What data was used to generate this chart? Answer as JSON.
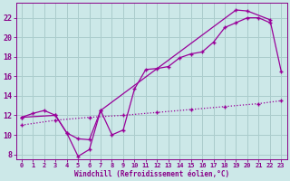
{
  "bg_color": "#cce8e8",
  "grid_color": "#aacccc",
  "line_color": "#990099",
  "marker": "+",
  "xlabel": "Windchill (Refroidissement éolien,°C)",
  "xlabel_color": "#880088",
  "tick_color": "#880088",
  "ylim": [
    7.5,
    23.5
  ],
  "xlim": [
    -0.5,
    23.5
  ],
  "yticks": [
    8,
    10,
    12,
    14,
    16,
    18,
    20,
    22
  ],
  "xticks": [
    0,
    1,
    2,
    3,
    4,
    5,
    6,
    7,
    8,
    9,
    10,
    11,
    12,
    13,
    14,
    15,
    16,
    17,
    18,
    19,
    20,
    21,
    22,
    23
  ],
  "line1_x": [
    0,
    1,
    2,
    3,
    4,
    5,
    6,
    7,
    8,
    9,
    10,
    11,
    12,
    13,
    14,
    15,
    16,
    17,
    18,
    19,
    20,
    21,
    22
  ],
  "line1_y": [
    11.8,
    12.2,
    12.5,
    12.0,
    10.2,
    9.6,
    9.5,
    12.5,
    10.0,
    10.5,
    14.7,
    16.7,
    16.8,
    17.0,
    17.9,
    18.3,
    18.5,
    19.5,
    21.0,
    21.5,
    22.0,
    22.0,
    21.5
  ],
  "line2_x": [
    0,
    3,
    4,
    5,
    6,
    7,
    19,
    20,
    22,
    23
  ],
  "line2_y": [
    11.8,
    12.0,
    10.2,
    7.8,
    8.5,
    12.5,
    22.8,
    22.7,
    21.8,
    16.5
  ],
  "line3_x": [
    0,
    3,
    6,
    9,
    12,
    15,
    18,
    21,
    23
  ],
  "line3_y": [
    11.0,
    11.5,
    11.8,
    12.0,
    12.3,
    12.6,
    12.9,
    13.2,
    13.5
  ]
}
